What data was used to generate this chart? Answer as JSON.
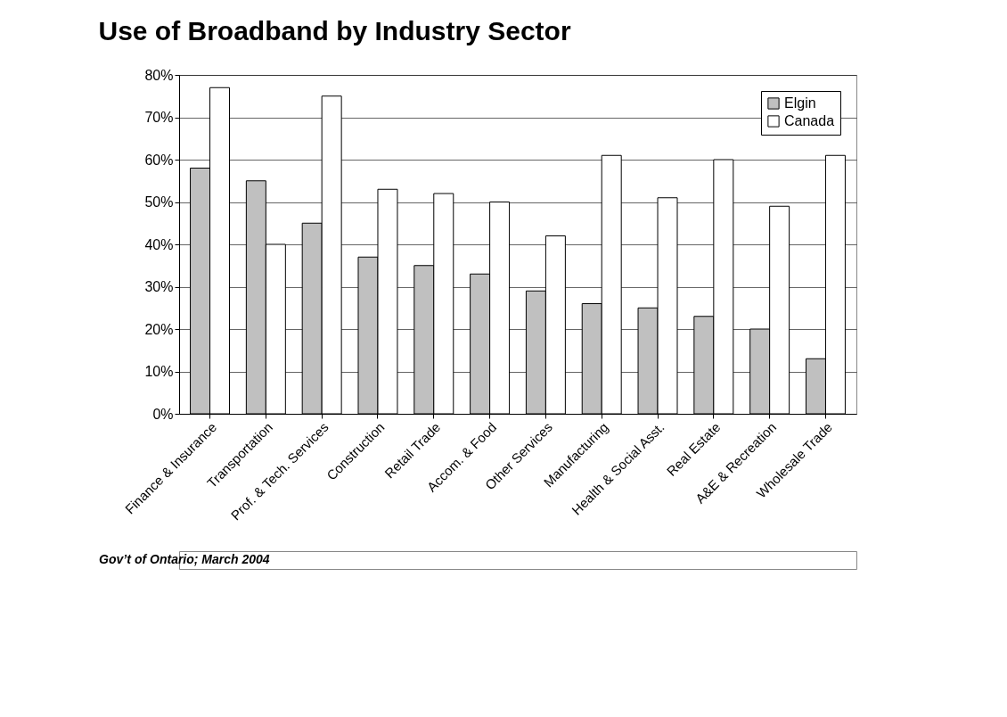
{
  "chart_data": {
    "type": "bar",
    "title": "Use of Broadband by Industry Sector",
    "categories": [
      "Finance & Insurance",
      "Transportation",
      "Prof. & Tech. Services",
      "Construction",
      "Retail Trade",
      "Accom. & Food",
      "Other Services",
      "Manufacturing",
      "Health & Social Asst.",
      "Real Estate",
      "A&E & Recreation",
      "Wholesale Trade"
    ],
    "series": [
      {
        "name": "Elgin",
        "color": "#c0c0c0",
        "values": [
          58,
          55,
          45,
          37,
          35,
          33,
          29,
          26,
          25,
          23,
          20,
          13
        ]
      },
      {
        "name": "Canada",
        "color": "#ffffff",
        "values": [
          77,
          40,
          75,
          53,
          52,
          50,
          42,
          61,
          51,
          60,
          49,
          61
        ]
      }
    ],
    "ylim": [
      0,
      80
    ],
    "yticks": [
      {
        "value": 0,
        "label": "0%"
      },
      {
        "value": 10,
        "label": "10%"
      },
      {
        "value": 20,
        "label": "20%"
      },
      {
        "value": 30,
        "label": "30%"
      },
      {
        "value": 40,
        "label": "40%"
      },
      {
        "value": 50,
        "label": "50%"
      },
      {
        "value": 60,
        "label": "60%"
      },
      {
        "value": 70,
        "label": "70%"
      },
      {
        "value": 80,
        "label": "80%"
      }
    ],
    "grid": "y",
    "legend": "top right",
    "annotations": [
      "Gov’t of Ontario; March 2004"
    ]
  }
}
